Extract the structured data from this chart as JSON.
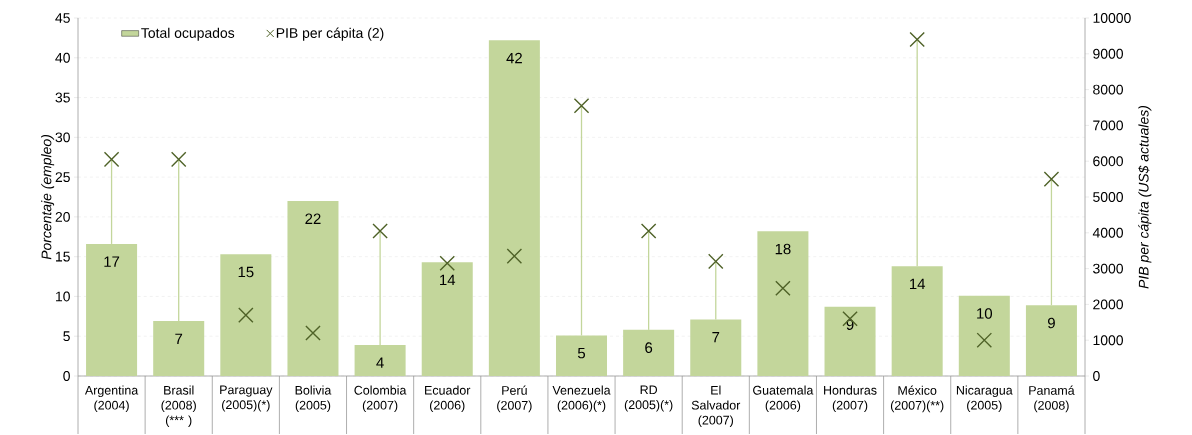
{
  "chart_data": {
    "type": "bar",
    "categories": [
      "Argentina (2004)",
      "Brasil (2008) (*** )",
      "Paraguay (2005)(*)",
      "Bolivia (2005)",
      "Colombia (2007)",
      "Ecuador (2006)",
      "Perú (2007)",
      "Venezuela (2006)(*)",
      "RD (2005)(*)",
      "El Salvador (2007)",
      "Guatemala (2006)",
      "Honduras (2007)",
      "México (2007)(**)",
      "Nicaragua (2005)",
      "Panamá (2008)"
    ],
    "series": [
      {
        "name": "Total ocupados",
        "color": "#c3d69b",
        "values": [
          16.6,
          6.9,
          15.3,
          22.0,
          3.9,
          14.3,
          42.2,
          5.1,
          5.8,
          7.1,
          18.2,
          8.7,
          13.8,
          10.1,
          8.9
        ],
        "value_labels": [
          "17",
          "7",
          "15",
          "22",
          "4",
          "14",
          "42",
          "5",
          "6",
          "7",
          "18",
          "9",
          "14",
          "10",
          "9"
        ]
      },
      {
        "name": "PIB per cápita (2)",
        "type": "scatter",
        "axis": "y2",
        "marker": "cross",
        "color": "#4f6228",
        "values": [
          6050,
          6050,
          1700,
          1200,
          4050,
          3150,
          3350,
          7550,
          4050,
          3200,
          2450,
          1600,
          9400,
          1000,
          5500
        ]
      }
    ],
    "ylabel": "Porcentaje (empleo)",
    "y2label": "PIB per cápita (US$ actuales)",
    "ylim": [
      0,
      45
    ],
    "yticks": [
      0,
      5,
      10,
      15,
      20,
      25,
      30,
      35,
      40,
      45
    ],
    "y2lim": [
      0,
      10000
    ],
    "y2ticks": [
      0,
      1000,
      2000,
      3000,
      4000,
      5000,
      6000,
      7000,
      8000,
      9000,
      10000
    ],
    "grid": "y",
    "legend": "top left"
  }
}
